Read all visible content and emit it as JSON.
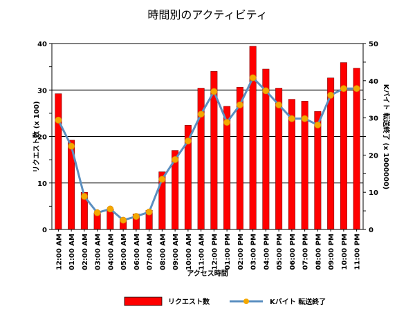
{
  "colors": {
    "bar_fill": "#ff0000",
    "bar_stroke": "#800000",
    "line": "#5b8fc0",
    "marker": "#f5a800",
    "grid": "#000000"
  },
  "chart_data": {
    "type": "bar",
    "title": "時間別のアクティビティ",
    "xlabel": "アクセス時間",
    "ylabel_left": "リクエスト数 (x 100)",
    "ylabel_right": "Kバイト 転送終了 (x 1000000)",
    "ylim_left": [
      0,
      40
    ],
    "ylim_right": [
      0,
      50
    ],
    "left_ticks": [
      "0",
      "10",
      "20",
      "30",
      "40"
    ],
    "right_ticks": [
      "0",
      "10",
      "20",
      "30",
      "40",
      "50"
    ],
    "grid": true,
    "legend_placement": "bottom",
    "categories": [
      "12:00 AM",
      "01:00 AM",
      "02:00 AM",
      "03:00 AM",
      "04:00 AM",
      "05:00 AM",
      "06:00 AM",
      "07:00 AM",
      "08:00 AM",
      "09:00 AM",
      "10:00 AM",
      "11:00 AM",
      "12:00 PM",
      "01:00 PM",
      "02:00 PM",
      "03:00 PM",
      "04:00 PM",
      "05:00 PM",
      "06:00 PM",
      "07:00 PM",
      "08:00 PM",
      "09:00 PM",
      "10:00 PM",
      "11:00 PM"
    ],
    "series": [
      {
        "name": "リクエスト数",
        "type": "bar",
        "axis": "left",
        "values": [
          29.2,
          19.2,
          8.0,
          3.5,
          4.4,
          2.2,
          3.3,
          4.1,
          12.4,
          17.0,
          22.4,
          30.4,
          34.0,
          26.5,
          30.6,
          39.4,
          34.5,
          30.4,
          28.0,
          27.6,
          25.4,
          32.6,
          35.9,
          34.7
        ]
      },
      {
        "name": "Kバイト 転送終了",
        "type": "line",
        "axis": "right",
        "values": [
          29.4,
          22.4,
          8.9,
          4.5,
          5.5,
          2.5,
          3.5,
          4.7,
          13.5,
          18.8,
          23.8,
          31.0,
          37.1,
          28.8,
          33.5,
          40.8,
          37.3,
          33.5,
          29.8,
          29.8,
          28.1,
          36.1,
          37.9,
          37.9
        ]
      }
    ]
  }
}
